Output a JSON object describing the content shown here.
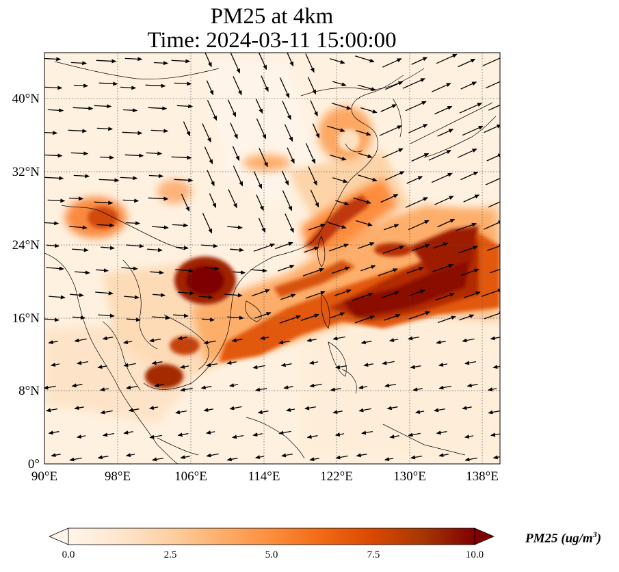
{
  "title": {
    "line1": "PM25 at 4km",
    "line2": "Time: 2024-03-11 15:00:00"
  },
  "map": {
    "lon_range": [
      90,
      140
    ],
    "lat_range": [
      0,
      45
    ],
    "lon_ticks": [
      "90°E",
      "98°E",
      "106°E",
      "114°E",
      "122°E",
      "130°E",
      "138°E"
    ],
    "lat_ticks": [
      "0°",
      "8°N",
      "16°N",
      "24°N",
      "32°N",
      "40°N"
    ],
    "gridlines": true,
    "field": "PM25",
    "overlay": "wind vectors"
  },
  "colorbar": {
    "label": "PM25",
    "unit_text": "(ug/m",
    "unit_sup": "3",
    "unit_close": ")",
    "min": 0.0,
    "max": 10.0,
    "ticks": [
      "0.0",
      "2.5",
      "5.0",
      "7.5",
      "10.0"
    ],
    "colors": [
      "#fff5eb",
      "#fee6ce",
      "#fdd0a2",
      "#fdae6b",
      "#fd8d3c",
      "#f16913",
      "#d94801",
      "#a63603",
      "#7f0000"
    ],
    "extend": "both"
  }
}
